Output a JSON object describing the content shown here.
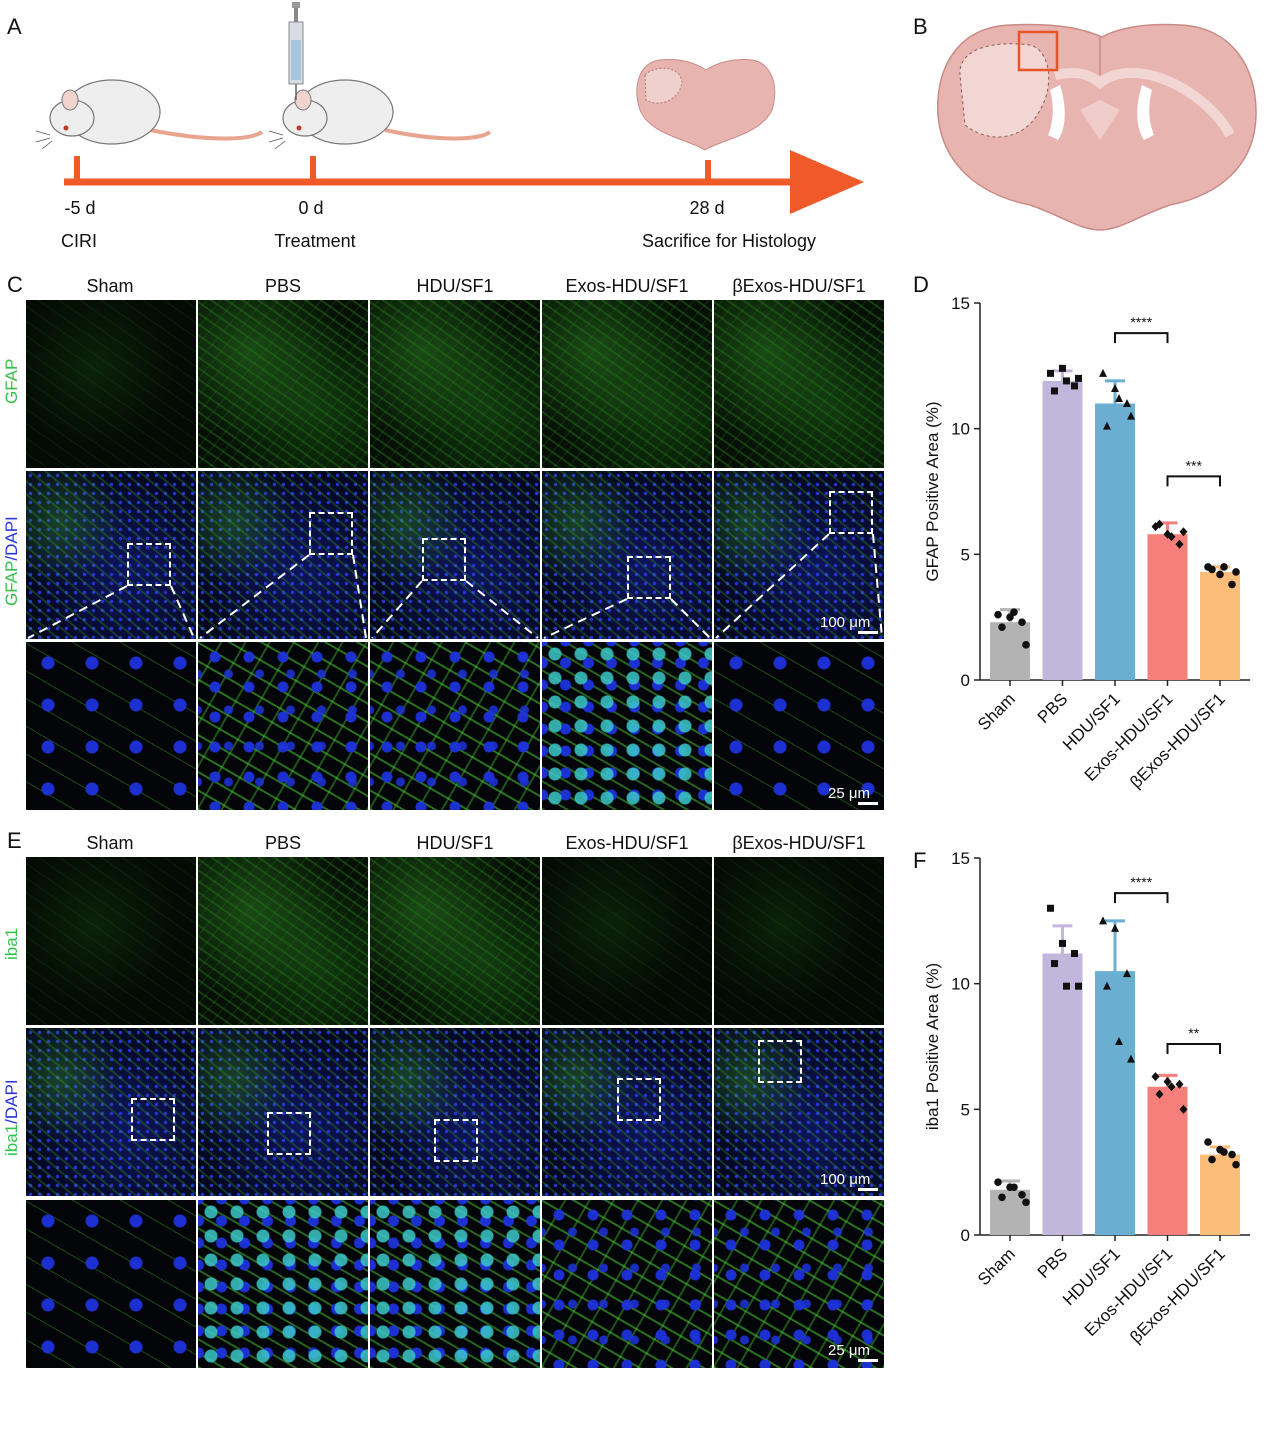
{
  "panels": {
    "a": "A",
    "b": "B",
    "c": "C",
    "d": "D",
    "e": "E",
    "f": "F"
  },
  "timeline": {
    "days": [
      "-5 d",
      "0 d",
      "28 d"
    ],
    "events": [
      "CIRI",
      "Treatment",
      "Sacrifice for Histology"
    ],
    "color": "#f05a28"
  },
  "groups": [
    "Sham",
    "PBS",
    "HDU/SF1",
    "Exos-HDU/SF1",
    "βExos-HDU/SF1"
  ],
  "gfap_section": {
    "row1_label": "GFAP",
    "row2_label_a": "GFAP",
    "row2_label_b": "/DAPI",
    "scale_100": "100 μm",
    "scale_25": "25 μm"
  },
  "iba1_section": {
    "row1_label": "iba1",
    "row2_label_a": "iba1",
    "row2_label_b": "/DAPI",
    "scale_100": "100 μm",
    "scale_25": "25 μm"
  },
  "chart_data": [
    {
      "type": "bar",
      "panel": "D",
      "categories": [
        "Sham",
        "PBS",
        "HDU/SF1",
        "Exos-HDU/SF1",
        "βExos-HDU/SF1"
      ],
      "values": [
        2.3,
        11.9,
        11.0,
        5.8,
        4.3
      ],
      "errors": [
        0.5,
        0.4,
        0.9,
        0.45,
        0.2
      ],
      "points": [
        [
          2.6,
          2.5,
          2.3,
          2.1,
          2.7,
          1.4
        ],
        [
          12.2,
          12.4,
          11.7,
          11.5,
          11.9,
          12.0
        ],
        [
          12.2,
          11.6,
          11.0,
          10.1,
          11.2,
          10.5
        ],
        [
          6.1,
          5.8,
          5.4,
          6.2,
          5.7,
          5.9
        ],
        [
          4.5,
          4.2,
          3.8,
          4.4,
          4.5,
          4.3
        ]
      ],
      "markers": [
        "circle",
        "square",
        "triangle",
        "diamond",
        "circle"
      ],
      "colors": [
        "#b3b3b3",
        "#c1b7dc",
        "#6aaed2",
        "#f77f7b",
        "#fbbd79"
      ],
      "ylabel": "GFAP Positive Area (%)",
      "yticks": [
        0,
        5,
        10,
        15
      ],
      "ylim": [
        0,
        15
      ],
      "significance": [
        {
          "from": 2,
          "to": 3,
          "label": "****",
          "y": 13.8
        },
        {
          "from": 3,
          "to": 4,
          "label": "***",
          "y": 8.1
        }
      ]
    },
    {
      "type": "bar",
      "panel": "F",
      "categories": [
        "Sham",
        "PBS",
        "HDU/SF1",
        "Exos-HDU/SF1",
        "βExos-HDU/SF1"
      ],
      "values": [
        1.8,
        11.2,
        10.5,
        5.9,
        3.2
      ],
      "errors": [
        0.35,
        1.1,
        2.0,
        0.45,
        0.3
      ],
      "points": [
        [
          2.1,
          1.9,
          1.6,
          1.5,
          1.9,
          1.3
        ],
        [
          13.0,
          11.6,
          11.2,
          10.8,
          9.9,
          9.9
        ],
        [
          12.5,
          12.2,
          10.4,
          9.9,
          7.7,
          7.0
        ],
        [
          6.3,
          6.1,
          6.0,
          5.6,
          5.9,
          5.0
        ],
        [
          3.7,
          3.4,
          3.2,
          3.0,
          3.3,
          2.8
        ]
      ],
      "markers": [
        "circle",
        "square",
        "triangle",
        "diamond",
        "circle"
      ],
      "colors": [
        "#b3b3b3",
        "#c1b7dc",
        "#6aaed2",
        "#f77f7b",
        "#fbbd79"
      ],
      "ylabel": "iba1 Positive Area (%)",
      "yticks": [
        0,
        5,
        10,
        15
      ],
      "ylim": [
        0,
        15
      ],
      "significance": [
        {
          "from": 2,
          "to": 3,
          "label": "****",
          "y": 13.6
        },
        {
          "from": 3,
          "to": 4,
          "label": "**",
          "y": 7.6
        }
      ]
    }
  ]
}
